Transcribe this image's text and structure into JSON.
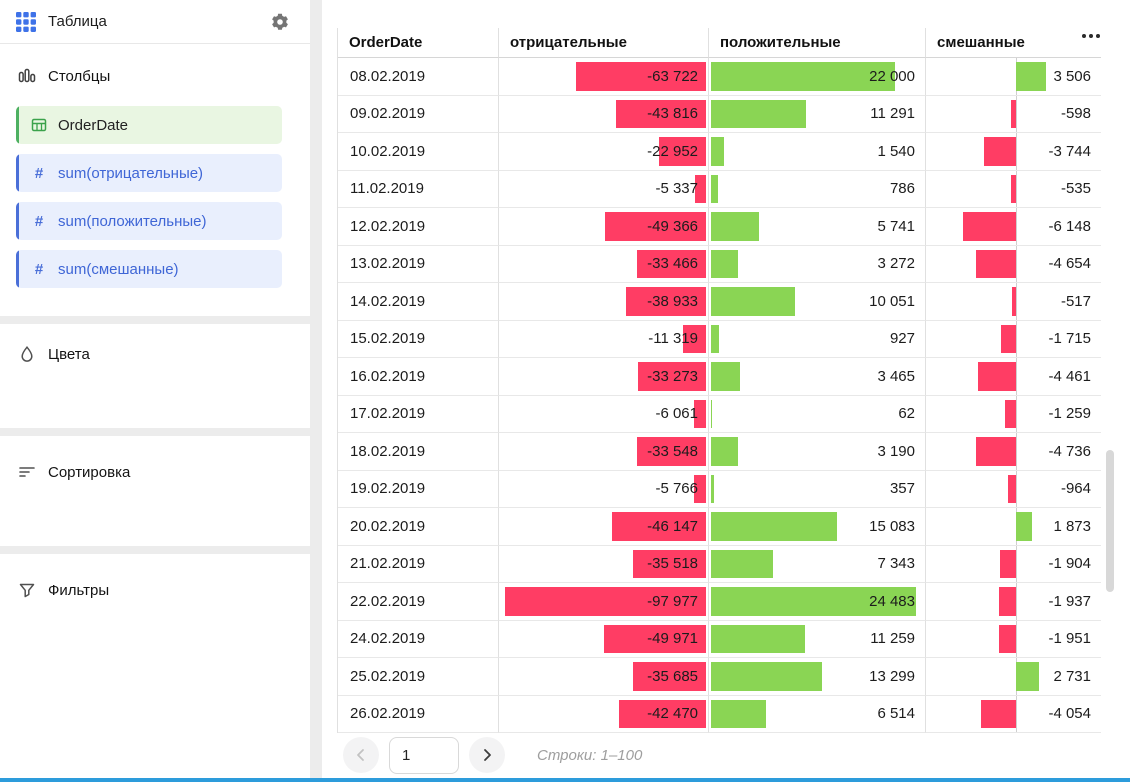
{
  "colors": {
    "negative_bar": "#ff3d64",
    "positive_bar": "#8ad554",
    "measure_blue": "#4a6fd8",
    "dimension_green": "#4db061",
    "bottom_strip": "#2d9cdb"
  },
  "sidebar": {
    "title": "Таблица",
    "sections": [
      {
        "id": "columns",
        "label": "Столбцы"
      },
      {
        "id": "colors",
        "label": "Цвета"
      },
      {
        "id": "sorting",
        "label": "Сортировка"
      },
      {
        "id": "filters",
        "label": "Фильтры"
      }
    ],
    "fields": [
      {
        "label": "OrderDate",
        "kind": "dimension",
        "icon": "table-date-icon"
      },
      {
        "label": "sum(отрицательные)",
        "kind": "measure",
        "icon": "number-icon"
      },
      {
        "label": "sum(положительные)",
        "kind": "measure",
        "icon": "number-icon"
      },
      {
        "label": "sum(смешанные)",
        "kind": "measure",
        "icon": "number-icon"
      }
    ]
  },
  "table": {
    "columns": [
      "OrderDate",
      "отрицательные",
      "положительные",
      "смешанные"
    ]
  },
  "pagination": {
    "page": "1",
    "rows_label": "Строки: 1–100"
  },
  "chart_data": {
    "type": "table",
    "title": "Таблица",
    "columns": [
      "OrderDate",
      "отрицательные",
      "положительные",
      "смешанные"
    ],
    "bar_columns": {
      "отрицательные": "negative-red-bar-right-anchored",
      "положительные": "positive-green-bar-left-anchored",
      "смешанные": "diverging-bar-with-axis"
    },
    "rows": [
      [
        "08.02.2019",
        -63722,
        22000,
        3506
      ],
      [
        "09.02.2019",
        -43816,
        11291,
        -598
      ],
      [
        "10.02.2019",
        -22952,
        1540,
        -3744
      ],
      [
        "11.02.2019",
        -5337,
        786,
        -535
      ],
      [
        "12.02.2019",
        -49366,
        5741,
        -6148
      ],
      [
        "13.02.2019",
        -33466,
        3272,
        -4654
      ],
      [
        "14.02.2019",
        -38933,
        10051,
        -517
      ],
      [
        "15.02.2019",
        -11319,
        927,
        -1715
      ],
      [
        "16.02.2019",
        -33273,
        3465,
        -4461
      ],
      [
        "17.02.2019",
        -6061,
        62,
        -1259
      ],
      [
        "18.02.2019",
        -33548,
        3190,
        -4736
      ],
      [
        "19.02.2019",
        -5766,
        357,
        -964
      ],
      [
        "20.02.2019",
        -46147,
        15083,
        1873
      ],
      [
        "21.02.2019",
        -35518,
        7343,
        -1904
      ],
      [
        "22.02.2019",
        -97977,
        24483,
        -1937
      ],
      [
        "24.02.2019",
        -49971,
        11259,
        -1951
      ],
      [
        "25.02.2019",
        -35685,
        13299,
        2731
      ],
      [
        "26.02.2019",
        -42470,
        6514,
        -4054
      ]
    ]
  }
}
